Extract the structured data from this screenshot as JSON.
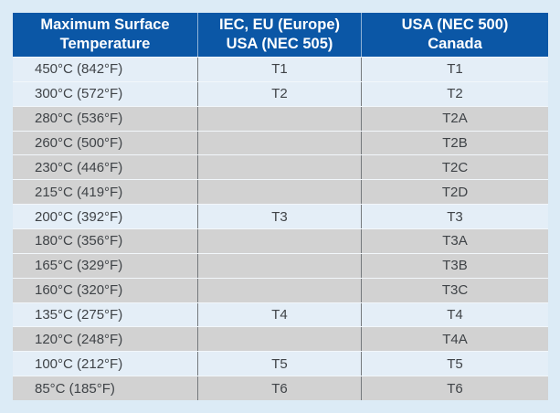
{
  "table": {
    "columns": [
      {
        "header_line1": "Maximum Surface",
        "header_line2": "Temperature"
      },
      {
        "header_line1": "IEC, EU (Europe)",
        "header_line2": "USA (NEC 505)"
      },
      {
        "header_line1": "USA (NEC 500)",
        "header_line2": "Canada"
      }
    ],
    "rows": [
      {
        "temperature": "450°C (842°F)",
        "iec_eu": "T1",
        "usa_canada": "T1",
        "shaded": false
      },
      {
        "temperature": "300°C (572°F)",
        "iec_eu": "T2",
        "usa_canada": "T2",
        "shaded": false
      },
      {
        "temperature": "280°C (536°F)",
        "iec_eu": "",
        "usa_canada": "T2A",
        "shaded": true
      },
      {
        "temperature": "260°C (500°F)",
        "iec_eu": "",
        "usa_canada": "T2B",
        "shaded": true
      },
      {
        "temperature": "230°C (446°F)",
        "iec_eu": "",
        "usa_canada": "T2C",
        "shaded": true
      },
      {
        "temperature": "215°C (419°F)",
        "iec_eu": "",
        "usa_canada": "T2D",
        "shaded": true
      },
      {
        "temperature": "200°C (392°F)",
        "iec_eu": "T3",
        "usa_canada": "T3",
        "shaded": false
      },
      {
        "temperature": "180°C (356°F)",
        "iec_eu": "",
        "usa_canada": "T3A",
        "shaded": true
      },
      {
        "temperature": "165°C (329°F)",
        "iec_eu": "",
        "usa_canada": "T3B",
        "shaded": true
      },
      {
        "temperature": "160°C (320°F)",
        "iec_eu": "",
        "usa_canada": "T3C",
        "shaded": true
      },
      {
        "temperature": "135°C (275°F)",
        "iec_eu": "T4",
        "usa_canada": "T4",
        "shaded": false
      },
      {
        "temperature": "120°C (248°F)",
        "iec_eu": "",
        "usa_canada": "T4A",
        "shaded": true
      },
      {
        "temperature": "100°C (212°F)",
        "iec_eu": "T5",
        "usa_canada": "T5",
        "shaded": false
      },
      {
        "temperature": "85°C (185°F)",
        "iec_eu": "T6",
        "usa_canada": "T6",
        "shaded": true
      }
    ]
  },
  "colors": {
    "page_bg": "#dcebf6",
    "header_bg": "#0b57a6",
    "header_text": "#ffffff",
    "row_light": "#e4eef7",
    "row_gray": "#d2d2d2",
    "cell_text": "#3f4347",
    "column_divider": "#75797d",
    "row_divider": "#f2f7fb"
  }
}
